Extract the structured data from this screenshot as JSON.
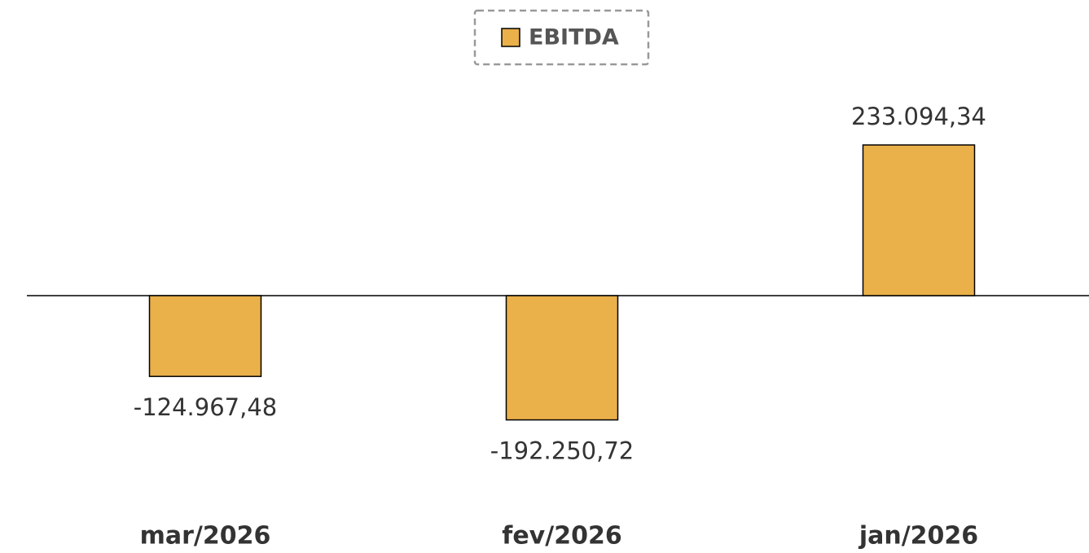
{
  "chart_data": {
    "type": "bar",
    "categories": [
      "mar/2026",
      "fev/2026",
      "jan/2026"
    ],
    "series": [
      {
        "name": "EBITDA",
        "color": "#EAB04A",
        "values": [
          -124967.48,
          -192250.72,
          233094.34
        ],
        "value_labels": [
          "-124.967,48",
          "-192.250,72",
          "233.094,34"
        ]
      }
    ]
  }
}
